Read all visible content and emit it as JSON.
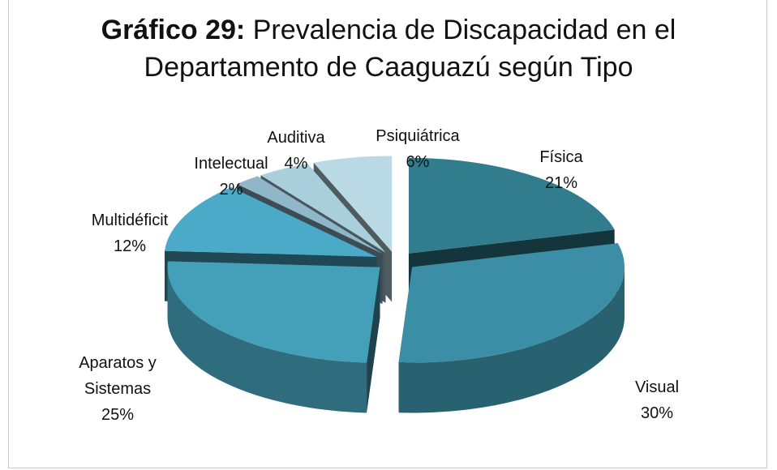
{
  "chart_data": {
    "type": "pie3d",
    "title": {
      "number": "Gráfico 29:",
      "text": "Prevalencia de Discapacidad en el Departamento de Caaguazú según Tipo"
    },
    "categories": [
      "Física",
      "Visual",
      "Aparatos y Sistemas",
      "Multidéficit",
      "Intelectual",
      "Auditiva",
      "Psiquiátrica"
    ],
    "values": [
      21,
      30,
      25,
      12,
      2,
      4,
      6
    ],
    "value_labels": [
      "21%",
      "30%",
      "25%",
      "12%",
      "2%",
      "4%",
      "6%"
    ],
    "colors": [
      "#317d8e",
      "#3b8ea5",
      "#449fb9",
      "#4aaac8",
      "#8fb6c9",
      "#a9cfdd",
      "#b9dae5"
    ]
  }
}
